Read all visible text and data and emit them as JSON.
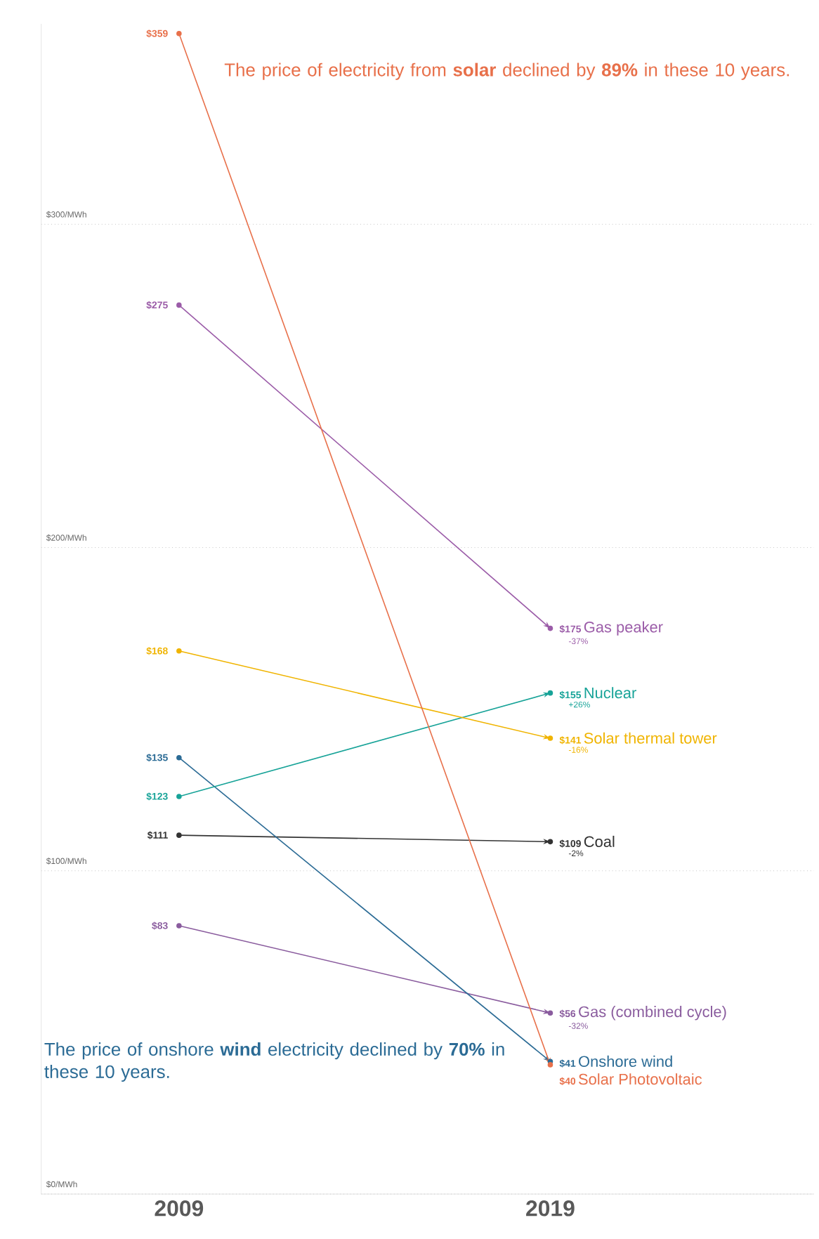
{
  "chart_data": {
    "type": "line",
    "categories": [
      "2009",
      "2019"
    ],
    "series": [
      {
        "name": "Solar Photovoltaic",
        "color": "#e8704a",
        "values": [
          359,
          40
        ],
        "value_labels": [
          "$359",
          "$40"
        ]
      },
      {
        "name": "Gas peaker",
        "color": "#9b5ca8",
        "values": [
          275,
          175
        ],
        "value_labels": [
          "$275",
          "$175"
        ]
      },
      {
        "name": "Solar thermal tower",
        "color": "#f0b400",
        "values": [
          168,
          141
        ],
        "value_labels": [
          "$168",
          "$141"
        ]
      },
      {
        "name": "Nuclear",
        "color": "#17a398",
        "values": [
          123,
          155
        ],
        "value_labels": [
          "$123",
          "$155"
        ]
      },
      {
        "name": "Onshore wind",
        "color": "#2b6b95",
        "values": [
          135,
          41
        ],
        "value_labels": [
          "$135",
          "$41"
        ]
      },
      {
        "name": "Coal",
        "color": "#333333",
        "values": [
          111,
          109
        ],
        "value_labels": [
          "$111",
          "$109"
        ]
      },
      {
        "name": "Gas (combined cycle)",
        "color": "#8a5c9e",
        "values": [
          83,
          56
        ],
        "value_labels": [
          "$83",
          "$56"
        ]
      }
    ],
    "ylim": [
      0,
      362
    ],
    "legend": "right",
    "yticks": [
      {
        "value": 0,
        "label": "$0/MWh"
      },
      {
        "value": 100,
        "label": "$100/MWh"
      },
      {
        "value": 200,
        "label": "$200/MWh"
      },
      {
        "value": 300,
        "label": "$300/MWh"
      }
    ],
    "grid": "y",
    "marker": "circle",
    "line_style": "solid",
    "annotations": [
      "The price of electricity from **solar** declined by **89%** in these 10 years.",
      "The price of onshore **wind** electricity declined by **70%** in these 10 years.",
      {
        "text": "-37%",
        "x": "2019",
        "y": 175
      },
      {
        "text": "+26%",
        "x": "2019",
        "y": 155
      },
      {
        "text": "-16%",
        "x": "2019",
        "y": 141
      },
      {
        "text": "-2%",
        "x": "2019",
        "y": 109
      },
      {
        "text": "-32%",
        "x": "2019",
        "y": 56
      }
    ]
  }
}
